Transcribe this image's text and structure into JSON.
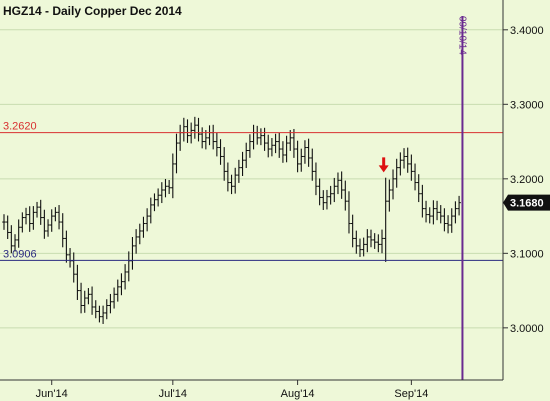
{
  "chart_data": {
    "type": "ohlc-bar",
    "title": "HGZ14 - Daily  Copper Dec 2014",
    "ylim": [
      2.93,
      3.44
    ],
    "y_ticks": [
      "3.4000",
      "3.3000",
      "3.2000",
      "3.1000",
      "3.0000"
    ],
    "y_tick_values": [
      3.4,
      3.3,
      3.2,
      3.1,
      3.0
    ],
    "x_ticks": [
      "Jun'14",
      "Jul'14",
      "Aug'14",
      "Sep'14"
    ],
    "x_tick_bar_index": [
      13,
      46,
      80,
      111
    ],
    "bar_count": 125,
    "horizontal_levels": [
      {
        "label": "3.2620",
        "value": 3.262,
        "color": "#d83030"
      },
      {
        "label": "3.0906",
        "value": 3.0906,
        "color": "#2a2a80"
      }
    ],
    "vertical_marker": {
      "label": "09/10/14",
      "bar_index": 125,
      "color": "#6a2a90"
    },
    "last_price": {
      "label": "3.1680",
      "value": 3.168
    },
    "arrow_annotation": {
      "bar_index": 104,
      "value": 3.21,
      "direction": "down",
      "color": "#dd1111"
    },
    "closes": [
      3.142,
      3.128,
      3.11,
      3.118,
      3.135,
      3.148,
      3.152,
      3.14,
      3.155,
      3.162,
      3.148,
      3.13,
      3.138,
      3.15,
      3.155,
      3.142,
      3.12,
      3.098,
      3.09,
      3.072,
      3.05,
      3.03,
      3.04,
      3.045,
      3.028,
      3.022,
      3.015,
      3.02,
      3.03,
      3.035,
      3.045,
      3.055,
      3.062,
      3.075,
      3.09,
      3.11,
      3.122,
      3.13,
      3.14,
      3.15,
      3.165,
      3.172,
      3.178,
      3.185,
      3.19,
      3.188,
      3.22,
      3.248,
      3.262,
      3.27,
      3.258,
      3.265,
      3.272,
      3.26,
      3.25,
      3.255,
      3.262,
      3.25,
      3.242,
      3.23,
      3.21,
      3.195,
      3.19,
      3.205,
      3.215,
      3.225,
      3.238,
      3.25,
      3.262,
      3.255,
      3.258,
      3.248,
      3.24,
      3.245,
      3.25,
      3.24,
      3.232,
      3.248,
      3.255,
      3.24,
      3.22,
      3.23,
      3.242,
      3.228,
      3.21,
      3.19,
      3.175,
      3.168,
      3.176,
      3.18,
      3.19,
      3.198,
      3.185,
      3.17,
      3.14,
      3.12,
      3.11,
      3.105,
      3.112,
      3.122,
      3.118,
      3.115,
      3.112,
      3.12,
      3.17,
      3.185,
      3.2,
      3.215,
      3.225,
      3.23,
      3.22,
      3.21,
      3.195,
      3.18,
      3.16,
      3.152,
      3.15,
      3.16,
      3.155,
      3.15,
      3.14,
      3.138,
      3.15,
      3.16,
      3.168
    ],
    "ranges": [
      0.03,
      0.025,
      0.028,
      0.022,
      0.03,
      0.02,
      0.026,
      0.032,
      0.024,
      0.02,
      0.028,
      0.03,
      0.022,
      0.026,
      0.02,
      0.028,
      0.034,
      0.03,
      0.026,
      0.032,
      0.036,
      0.03,
      0.028,
      0.024,
      0.03,
      0.026,
      0.022,
      0.028,
      0.024,
      0.03,
      0.026,
      0.028,
      0.032,
      0.03,
      0.036,
      0.034,
      0.03,
      0.028,
      0.026,
      0.03,
      0.028,
      0.024,
      0.026,
      0.03,
      0.028,
      0.024,
      0.04,
      0.036,
      0.03,
      0.034,
      0.028,
      0.03,
      0.032,
      0.028,
      0.026,
      0.03,
      0.028,
      0.03,
      0.034,
      0.032,
      0.036,
      0.034,
      0.03,
      0.028,
      0.03,
      0.032,
      0.03,
      0.028,
      0.03,
      0.026,
      0.028,
      0.03,
      0.032,
      0.028,
      0.03,
      0.034,
      0.03,
      0.028,
      0.03,
      0.034,
      0.032,
      0.03,
      0.028,
      0.034,
      0.036,
      0.034,
      0.03,
      0.028,
      0.026,
      0.03,
      0.032,
      0.03,
      0.034,
      0.036,
      0.038,
      0.034,
      0.03,
      0.028,
      0.026,
      0.03,
      0.028,
      0.026,
      0.03,
      0.034,
      0.09,
      0.04,
      0.036,
      0.034,
      0.03,
      0.032,
      0.034,
      0.036,
      0.03,
      0.032,
      0.034,
      0.03,
      0.028,
      0.032,
      0.03,
      0.028,
      0.03,
      0.032,
      0.03,
      0.028,
      0.026
    ]
  }
}
